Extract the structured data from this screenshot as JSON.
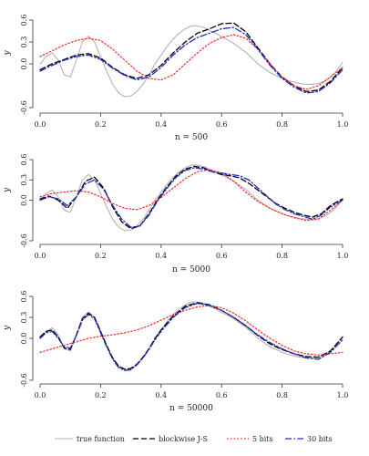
{
  "legend": {
    "entries": [
      {
        "key": "true",
        "label": "true function",
        "color": "#b3b3b3",
        "dash": "solid"
      },
      {
        "key": "js",
        "label": "blockwise J-S",
        "color": "#000000",
        "dash": "dashed"
      },
      {
        "key": "b5",
        "label": "5 bits",
        "color": "#ff2a2a",
        "dash": "dotted"
      },
      {
        "key": "b30",
        "label": "30 bits",
        "color": "#1f2fbf",
        "dash": "dotdash"
      }
    ]
  },
  "chart_data": [
    {
      "type": "line",
      "title": "n = 500",
      "xlabel": "",
      "ylabel": "y",
      "xlim": [
        0,
        1
      ],
      "ylim": [
        -0.6,
        0.6
      ],
      "xticks": [
        0.0,
        0.2,
        0.4,
        0.6,
        0.8,
        1.0
      ],
      "xtick_labels": [
        "0.0",
        "0.2",
        "0.4",
        "0.6",
        "0.8",
        "1.0"
      ],
      "yticks": [
        -0.6,
        0.0,
        0.3,
        0.6
      ],
      "ytick_labels": [
        "-0.6",
        "0.0",
        "0.3",
        "0.6"
      ],
      "series": [
        {
          "key": "true",
          "x": [
            0,
            0.02,
            0.04,
            0.06,
            0.08,
            0.1,
            0.12,
            0.14,
            0.16,
            0.18,
            0.2,
            0.22,
            0.24,
            0.26,
            0.28,
            0.3,
            0.32,
            0.34,
            0.36,
            0.38,
            0.4,
            0.42,
            0.44,
            0.46,
            0.48,
            0.5,
            0.52,
            0.54,
            0.56,
            0.58,
            0.6,
            0.62,
            0.64,
            0.66,
            0.68,
            0.7,
            0.72,
            0.74,
            0.76,
            0.78,
            0.8,
            0.82,
            0.84,
            0.86,
            0.88,
            0.9,
            0.92,
            0.94,
            0.96,
            0.98,
            1.0
          ],
          "y": [
            0.0,
            0.1,
            0.15,
            0.05,
            -0.15,
            -0.18,
            0.05,
            0.3,
            0.38,
            0.3,
            0.1,
            -0.1,
            -0.28,
            -0.4,
            -0.45,
            -0.44,
            -0.38,
            -0.28,
            -0.15,
            0.0,
            0.12,
            0.24,
            0.34,
            0.42,
            0.48,
            0.52,
            0.52,
            0.5,
            0.46,
            0.42,
            0.37,
            0.33,
            0.28,
            0.22,
            0.16,
            0.08,
            0.0,
            -0.06,
            -0.12,
            -0.16,
            -0.2,
            -0.23,
            -0.25,
            -0.27,
            -0.28,
            -0.28,
            -0.27,
            -0.24,
            -0.18,
            -0.1,
            0.02
          ]
        },
        {
          "key": "js",
          "x": [
            0,
            0.04,
            0.08,
            0.12,
            0.16,
            0.2,
            0.24,
            0.28,
            0.32,
            0.36,
            0.4,
            0.44,
            0.48,
            0.52,
            0.56,
            0.6,
            0.64,
            0.68,
            0.72,
            0.76,
            0.8,
            0.84,
            0.88,
            0.92,
            0.96,
            1.0
          ],
          "y": [
            -0.08,
            0.0,
            0.06,
            0.12,
            0.14,
            0.08,
            -0.05,
            -0.15,
            -0.2,
            -0.15,
            -0.02,
            0.15,
            0.3,
            0.42,
            0.48,
            0.55,
            0.56,
            0.44,
            0.22,
            0.0,
            -0.18,
            -0.3,
            -0.38,
            -0.36,
            -0.24,
            -0.05
          ]
        },
        {
          "key": "b5",
          "x": [
            0,
            0.04,
            0.08,
            0.12,
            0.16,
            0.2,
            0.24,
            0.28,
            0.32,
            0.36,
            0.4,
            0.44,
            0.48,
            0.52,
            0.56,
            0.6,
            0.64,
            0.68,
            0.72,
            0.76,
            0.8,
            0.84,
            0.88,
            0.92,
            0.96,
            1.0
          ],
          "y": [
            0.1,
            0.18,
            0.26,
            0.32,
            0.35,
            0.32,
            0.2,
            0.05,
            -0.1,
            -0.2,
            -0.22,
            -0.15,
            0.0,
            0.15,
            0.28,
            0.36,
            0.4,
            0.35,
            0.2,
            0.0,
            -0.18,
            -0.3,
            -0.35,
            -0.3,
            -0.18,
            -0.05
          ]
        },
        {
          "key": "b30",
          "x": [
            0,
            0.04,
            0.08,
            0.12,
            0.16,
            0.2,
            0.24,
            0.28,
            0.32,
            0.36,
            0.4,
            0.44,
            0.48,
            0.52,
            0.56,
            0.6,
            0.64,
            0.68,
            0.72,
            0.76,
            0.8,
            0.84,
            0.88,
            0.92,
            0.96,
            1.0
          ],
          "y": [
            -0.1,
            -0.02,
            0.05,
            0.1,
            0.12,
            0.06,
            -0.06,
            -0.16,
            -0.22,
            -0.18,
            -0.05,
            0.12,
            0.26,
            0.36,
            0.42,
            0.48,
            0.5,
            0.4,
            0.2,
            -0.02,
            -0.2,
            -0.32,
            -0.4,
            -0.38,
            -0.26,
            -0.08
          ]
        }
      ]
    },
    {
      "type": "line",
      "title": "n = 5000",
      "xlabel": "",
      "ylabel": "y",
      "xlim": [
        0,
        1
      ],
      "ylim": [
        -0.6,
        0.6
      ],
      "xticks": [
        0.0,
        0.2,
        0.4,
        0.6,
        0.8,
        1.0
      ],
      "xtick_labels": [
        "0.0",
        "0.2",
        "0.4",
        "0.6",
        "0.8",
        "1.0"
      ],
      "yticks": [
        -0.6,
        0.0,
        0.3,
        0.6
      ],
      "ytick_labels": [
        "-0.6",
        "0.0",
        "0.3",
        "0.6"
      ],
      "series": [
        {
          "key": "true",
          "x": [
            0,
            0.02,
            0.04,
            0.06,
            0.08,
            0.1,
            0.12,
            0.14,
            0.16,
            0.18,
            0.2,
            0.22,
            0.24,
            0.26,
            0.28,
            0.3,
            0.32,
            0.34,
            0.36,
            0.38,
            0.4,
            0.42,
            0.44,
            0.46,
            0.48,
            0.5,
            0.52,
            0.54,
            0.56,
            0.58,
            0.6,
            0.62,
            0.64,
            0.66,
            0.68,
            0.7,
            0.72,
            0.74,
            0.76,
            0.78,
            0.8,
            0.82,
            0.84,
            0.86,
            0.88,
            0.9,
            0.92,
            0.94,
            0.96,
            0.98,
            1.0
          ],
          "y": [
            0.0,
            0.1,
            0.15,
            0.05,
            -0.15,
            -0.18,
            0.05,
            0.3,
            0.38,
            0.3,
            0.1,
            -0.1,
            -0.28,
            -0.4,
            -0.45,
            -0.44,
            -0.38,
            -0.28,
            -0.15,
            0.0,
            0.12,
            0.24,
            0.34,
            0.42,
            0.48,
            0.52,
            0.52,
            0.5,
            0.46,
            0.42,
            0.37,
            0.33,
            0.28,
            0.22,
            0.16,
            0.08,
            0.0,
            -0.06,
            -0.12,
            -0.16,
            -0.2,
            -0.23,
            -0.25,
            -0.27,
            -0.28,
            -0.28,
            -0.27,
            -0.24,
            -0.18,
            -0.1,
            0.02
          ]
        },
        {
          "key": "js",
          "x": [
            0,
            0.03,
            0.06,
            0.09,
            0.12,
            0.15,
            0.18,
            0.21,
            0.24,
            0.27,
            0.3,
            0.33,
            0.36,
            0.39,
            0.42,
            0.45,
            0.48,
            0.51,
            0.54,
            0.57,
            0.6,
            0.63,
            0.66,
            0.69,
            0.72,
            0.75,
            0.78,
            0.81,
            0.84,
            0.87,
            0.9,
            0.93,
            0.96,
            1.0
          ],
          "y": [
            0.02,
            0.06,
            0.0,
            -0.12,
            0.05,
            0.28,
            0.34,
            0.18,
            -0.1,
            -0.32,
            -0.42,
            -0.38,
            -0.2,
            0.02,
            0.2,
            0.36,
            0.46,
            0.5,
            0.48,
            0.42,
            0.38,
            0.36,
            0.33,
            0.25,
            0.15,
            0.05,
            -0.05,
            -0.12,
            -0.18,
            -0.22,
            -0.25,
            -0.2,
            -0.08,
            0.02
          ]
        },
        {
          "key": "b5",
          "x": [
            0,
            0.04,
            0.08,
            0.12,
            0.16,
            0.2,
            0.24,
            0.28,
            0.32,
            0.36,
            0.4,
            0.44,
            0.48,
            0.52,
            0.56,
            0.6,
            0.64,
            0.68,
            0.72,
            0.76,
            0.8,
            0.84,
            0.88,
            0.92,
            0.96,
            1.0
          ],
          "y": [
            0.05,
            0.1,
            0.12,
            0.14,
            0.12,
            0.05,
            -0.05,
            -0.12,
            -0.14,
            -0.08,
            0.04,
            0.18,
            0.32,
            0.42,
            0.45,
            0.4,
            0.28,
            0.12,
            -0.02,
            -0.12,
            -0.2,
            -0.26,
            -0.3,
            -0.28,
            -0.15,
            0.0
          ]
        },
        {
          "key": "b30",
          "x": [
            0,
            0.03,
            0.06,
            0.09,
            0.12,
            0.15,
            0.18,
            0.21,
            0.24,
            0.27,
            0.3,
            0.33,
            0.36,
            0.39,
            0.42,
            0.45,
            0.48,
            0.51,
            0.54,
            0.57,
            0.6,
            0.63,
            0.66,
            0.69,
            0.72,
            0.75,
            0.78,
            0.81,
            0.84,
            0.87,
            0.9,
            0.93,
            0.96,
            1.0
          ],
          "y": [
            0.0,
            0.05,
            0.02,
            -0.08,
            0.05,
            0.24,
            0.3,
            0.16,
            -0.08,
            -0.28,
            -0.4,
            -0.38,
            -0.22,
            0.0,
            0.18,
            0.34,
            0.44,
            0.48,
            0.46,
            0.42,
            0.4,
            0.38,
            0.36,
            0.3,
            0.18,
            0.06,
            -0.06,
            -0.14,
            -0.2,
            -0.24,
            -0.28,
            -0.22,
            -0.1,
            0.0
          ]
        }
      ]
    },
    {
      "type": "line",
      "title": "n = 50000",
      "xlabel": "",
      "ylabel": "y",
      "xlim": [
        0,
        1
      ],
      "ylim": [
        -0.6,
        0.6
      ],
      "xticks": [
        0.0,
        0.2,
        0.4,
        0.6,
        0.8,
        1.0
      ],
      "xtick_labels": [
        "0.0",
        "0.2",
        "0.4",
        "0.6",
        "0.8",
        "1.0"
      ],
      "yticks": [
        -0.6,
        0.0,
        0.3,
        0.6
      ],
      "ytick_labels": [
        "-0.6",
        "0.0",
        "0.3",
        "0.6"
      ],
      "series": [
        {
          "key": "true",
          "x": [
            0,
            0.02,
            0.04,
            0.06,
            0.08,
            0.1,
            0.12,
            0.14,
            0.16,
            0.18,
            0.2,
            0.22,
            0.24,
            0.26,
            0.28,
            0.3,
            0.32,
            0.34,
            0.36,
            0.38,
            0.4,
            0.42,
            0.44,
            0.46,
            0.48,
            0.5,
            0.52,
            0.54,
            0.56,
            0.58,
            0.6,
            0.62,
            0.64,
            0.66,
            0.68,
            0.7,
            0.72,
            0.74,
            0.76,
            0.78,
            0.8,
            0.82,
            0.84,
            0.86,
            0.88,
            0.9,
            0.92,
            0.94,
            0.96,
            0.98,
            1.0
          ],
          "y": [
            0.0,
            0.1,
            0.15,
            0.05,
            -0.15,
            -0.18,
            0.05,
            0.3,
            0.38,
            0.3,
            0.1,
            -0.1,
            -0.28,
            -0.4,
            -0.45,
            -0.44,
            -0.38,
            -0.28,
            -0.15,
            0.0,
            0.12,
            0.24,
            0.34,
            0.42,
            0.48,
            0.52,
            0.52,
            0.5,
            0.46,
            0.42,
            0.37,
            0.33,
            0.28,
            0.22,
            0.16,
            0.08,
            0.0,
            -0.06,
            -0.12,
            -0.16,
            -0.2,
            -0.23,
            -0.25,
            -0.27,
            -0.28,
            -0.28,
            -0.27,
            -0.24,
            -0.18,
            -0.1,
            0.02
          ]
        },
        {
          "key": "js",
          "x": [
            0,
            0.02,
            0.04,
            0.06,
            0.08,
            0.1,
            0.12,
            0.14,
            0.16,
            0.18,
            0.2,
            0.22,
            0.24,
            0.26,
            0.28,
            0.3,
            0.32,
            0.34,
            0.36,
            0.38,
            0.4,
            0.44,
            0.48,
            0.52,
            0.56,
            0.6,
            0.64,
            0.68,
            0.72,
            0.76,
            0.8,
            0.84,
            0.88,
            0.92,
            0.96,
            1.0
          ],
          "y": [
            0.02,
            0.1,
            0.12,
            0.02,
            -0.14,
            -0.16,
            0.05,
            0.28,
            0.36,
            0.3,
            0.1,
            -0.1,
            -0.28,
            -0.4,
            -0.44,
            -0.43,
            -0.37,
            -0.27,
            -0.15,
            0.0,
            0.12,
            0.32,
            0.46,
            0.51,
            0.48,
            0.4,
            0.3,
            0.18,
            0.04,
            -0.08,
            -0.16,
            -0.22,
            -0.26,
            -0.27,
            -0.18,
            0.02
          ]
        },
        {
          "key": "b5",
          "x": [
            0,
            0.04,
            0.08,
            0.12,
            0.16,
            0.2,
            0.24,
            0.28,
            0.32,
            0.36,
            0.4,
            0.44,
            0.48,
            0.52,
            0.56,
            0.6,
            0.64,
            0.68,
            0.72,
            0.76,
            0.8,
            0.84,
            0.88,
            0.92,
            0.96,
            1.0
          ],
          "y": [
            -0.2,
            -0.15,
            -0.1,
            -0.05,
            0.0,
            0.03,
            0.05,
            0.08,
            0.12,
            0.18,
            0.26,
            0.34,
            0.4,
            0.45,
            0.47,
            0.44,
            0.36,
            0.25,
            0.12,
            0.0,
            -0.1,
            -0.18,
            -0.22,
            -0.24,
            -0.22,
            -0.2
          ]
        },
        {
          "key": "b30",
          "x": [
            0,
            0.02,
            0.04,
            0.06,
            0.08,
            0.1,
            0.12,
            0.14,
            0.16,
            0.18,
            0.2,
            0.22,
            0.24,
            0.26,
            0.28,
            0.3,
            0.32,
            0.34,
            0.36,
            0.38,
            0.4,
            0.44,
            0.48,
            0.52,
            0.56,
            0.6,
            0.64,
            0.68,
            0.72,
            0.76,
            0.8,
            0.84,
            0.88,
            0.92,
            0.96,
            1.0
          ],
          "y": [
            0.0,
            0.08,
            0.1,
            0.0,
            -0.12,
            -0.14,
            0.04,
            0.26,
            0.34,
            0.28,
            0.08,
            -0.12,
            -0.3,
            -0.42,
            -0.46,
            -0.45,
            -0.38,
            -0.28,
            -0.16,
            -0.02,
            0.1,
            0.3,
            0.44,
            0.5,
            0.47,
            0.4,
            0.3,
            0.18,
            0.05,
            -0.06,
            -0.15,
            -0.22,
            -0.28,
            -0.3,
            -0.2,
            -0.02
          ]
        }
      ]
    }
  ]
}
